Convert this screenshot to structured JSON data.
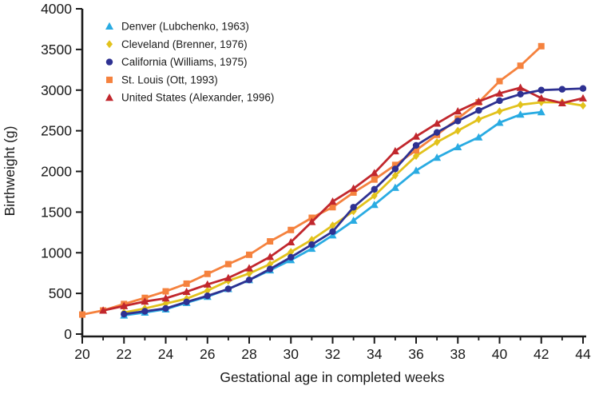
{
  "figure": {
    "background": "#ffffff",
    "axis_color": "#1a1a1a"
  },
  "chart_data": {
    "type": "line",
    "title": "",
    "xlabel": "Gestational age in completed weeks",
    "ylabel": "Birthweight (g)",
    "xlim": [
      20,
      44
    ],
    "ylim": [
      0,
      4000
    ],
    "x_major_ticks": [
      20,
      22,
      24,
      26,
      28,
      30,
      32,
      34,
      36,
      38,
      40,
      42,
      44
    ],
    "x_minor_ticks": [
      21,
      23,
      25,
      27,
      29,
      31,
      33,
      35,
      37,
      39,
      41,
      43
    ],
    "y_ticks": [
      0,
      500,
      1000,
      1500,
      2000,
      2500,
      3000,
      3500,
      4000
    ],
    "grid": false,
    "legend_position": "top-left-inside",
    "series": [
      {
        "id": "denver",
        "name": "Denver (Lubchenko, 1963)",
        "color": "#29ABE2",
        "marker": "triangle",
        "points": [
          [
            22,
            230
          ],
          [
            23,
            265
          ],
          [
            24,
            305
          ],
          [
            25,
            385
          ],
          [
            26,
            460
          ],
          [
            27,
            555
          ],
          [
            28,
            665
          ],
          [
            29,
            785
          ],
          [
            30,
            910
          ],
          [
            31,
            1050
          ],
          [
            32,
            1215
          ],
          [
            33,
            1395
          ],
          [
            34,
            1590
          ],
          [
            35,
            1800
          ],
          [
            36,
            2010
          ],
          [
            37,
            2170
          ],
          [
            38,
            2300
          ],
          [
            39,
            2420
          ],
          [
            40,
            2600
          ],
          [
            41,
            2700
          ],
          [
            42,
            2730
          ]
        ]
      },
      {
        "id": "cleveland",
        "name": "Cleveland (Brenner, 1976)",
        "color": "#E2C21C",
        "marker": "diamond",
        "points": [
          [
            22,
            265
          ],
          [
            23,
            315
          ],
          [
            24,
            375
          ],
          [
            25,
            435
          ],
          [
            26,
            535
          ],
          [
            27,
            655
          ],
          [
            28,
            745
          ],
          [
            29,
            860
          ],
          [
            30,
            1010
          ],
          [
            31,
            1160
          ],
          [
            32,
            1335
          ],
          [
            33,
            1510
          ],
          [
            34,
            1700
          ],
          [
            35,
            1950
          ],
          [
            36,
            2190
          ],
          [
            37,
            2360
          ],
          [
            38,
            2500
          ],
          [
            39,
            2640
          ],
          [
            40,
            2740
          ],
          [
            41,
            2820
          ],
          [
            42,
            2850
          ],
          [
            43,
            2850
          ],
          [
            44,
            2810
          ]
        ]
      },
      {
        "id": "california",
        "name": "California (Williams, 1975)",
        "color": "#2E3192",
        "marker": "circle",
        "points": [
          [
            22,
            245
          ],
          [
            23,
            280
          ],
          [
            24,
            315
          ],
          [
            25,
            395
          ],
          [
            26,
            470
          ],
          [
            27,
            555
          ],
          [
            28,
            665
          ],
          [
            29,
            800
          ],
          [
            30,
            945
          ],
          [
            31,
            1100
          ],
          [
            32,
            1260
          ],
          [
            33,
            1560
          ],
          [
            34,
            1780
          ],
          [
            35,
            2030
          ],
          [
            36,
            2320
          ],
          [
            37,
            2480
          ],
          [
            38,
            2620
          ],
          [
            39,
            2750
          ],
          [
            40,
            2870
          ],
          [
            41,
            2950
          ],
          [
            42,
            3000
          ],
          [
            43,
            3010
          ],
          [
            44,
            3020
          ]
        ]
      },
      {
        "id": "st-louis",
        "name": "St. Louis (Ott, 1993)",
        "color": "#F5823E",
        "marker": "square",
        "points": [
          [
            20,
            240
          ],
          [
            21,
            290
          ],
          [
            22,
            370
          ],
          [
            23,
            445
          ],
          [
            24,
            525
          ],
          [
            25,
            620
          ],
          [
            26,
            740
          ],
          [
            27,
            860
          ],
          [
            28,
            975
          ],
          [
            29,
            1140
          ],
          [
            30,
            1280
          ],
          [
            31,
            1430
          ],
          [
            32,
            1560
          ],
          [
            33,
            1740
          ],
          [
            34,
            1900
          ],
          [
            35,
            2080
          ],
          [
            36,
            2260
          ],
          [
            37,
            2450
          ],
          [
            38,
            2650
          ],
          [
            39,
            2850
          ],
          [
            40,
            3110
          ],
          [
            41,
            3300
          ],
          [
            42,
            3540
          ]
        ]
      },
      {
        "id": "united-states",
        "name": "United States (Alexander, 1996)",
        "color": "#C1272D",
        "marker": "triangle",
        "points": [
          [
            21,
            290
          ],
          [
            22,
            345
          ],
          [
            23,
            400
          ],
          [
            24,
            440
          ],
          [
            25,
            520
          ],
          [
            26,
            610
          ],
          [
            27,
            690
          ],
          [
            28,
            810
          ],
          [
            29,
            950
          ],
          [
            30,
            1130
          ],
          [
            31,
            1380
          ],
          [
            32,
            1630
          ],
          [
            33,
            1790
          ],
          [
            34,
            1980
          ],
          [
            35,
            2250
          ],
          [
            36,
            2430
          ],
          [
            37,
            2590
          ],
          [
            38,
            2740
          ],
          [
            39,
            2860
          ],
          [
            40,
            2960
          ],
          [
            41,
            3030
          ],
          [
            42,
            2900
          ],
          [
            43,
            2840
          ],
          [
            44,
            2900
          ]
        ]
      }
    ]
  }
}
